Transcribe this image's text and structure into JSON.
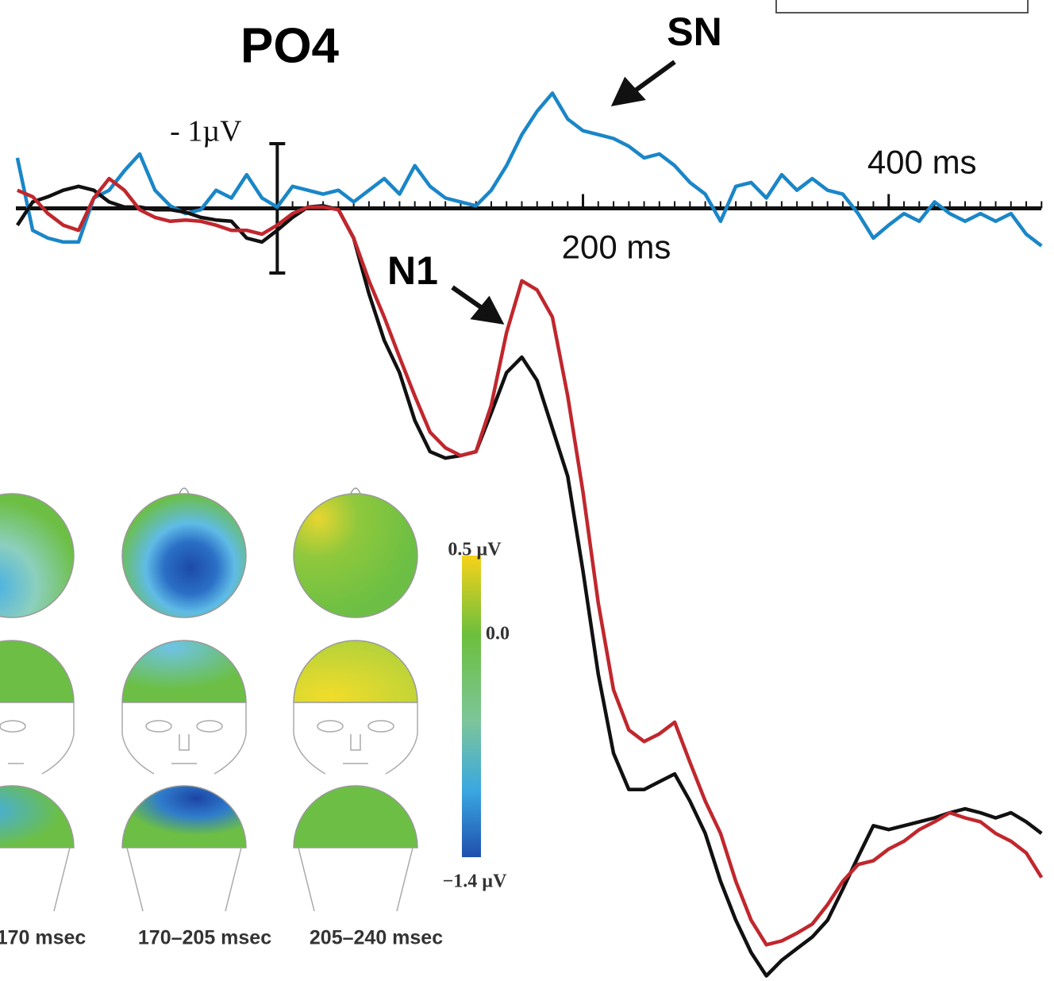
{
  "chart_data": {
    "type": "line",
    "title": "PO4",
    "x": [
      -170,
      -160,
      -150,
      -140,
      -130,
      -120,
      -110,
      -100,
      -90,
      -80,
      -70,
      -60,
      -50,
      -40,
      -30,
      -20,
      -10,
      0,
      10,
      20,
      30,
      40,
      50,
      60,
      70,
      80,
      90,
      100,
      110,
      120,
      130,
      140,
      150,
      160,
      170,
      180,
      190,
      200,
      210,
      220,
      230,
      240,
      250,
      260,
      270,
      280,
      290,
      300,
      310,
      320,
      330,
      340,
      350,
      360,
      370,
      380,
      390,
      400,
      410,
      420,
      430,
      440,
      450,
      460,
      470,
      480,
      490,
      500
    ],
    "series": [
      {
        "color": "#111111",
        "values": [
          0.13,
          -0.05,
          -0.09,
          -0.14,
          -0.17,
          -0.14,
          -0.05,
          -0.01,
          -0.01,
          0.01,
          0.01,
          0.03,
          0.07,
          0.09,
          0.1,
          0.23,
          0.26,
          0.17,
          0.07,
          -0.01,
          -0.02,
          0.01,
          0.23,
          0.66,
          1.02,
          1.27,
          1.64,
          1.88,
          1.93,
          1.91,
          1.88,
          1.58,
          1.27,
          1.15,
          1.33,
          1.7,
          2.07,
          2.8,
          3.6,
          4.21,
          4.49,
          4.49,
          4.43,
          4.37,
          4.58,
          4.83,
          5.2,
          5.5,
          5.75,
          5.93,
          5.81,
          5.72,
          5.63,
          5.5,
          5.26,
          5.01,
          4.77,
          4.8,
          4.77,
          4.74,
          4.71,
          4.67,
          4.64,
          4.67,
          4.71,
          4.67,
          4.74,
          4.83
        ]
      },
      {
        "color": "#c0272d",
        "values": [
          -0.14,
          -0.09,
          0.04,
          0.13,
          0.17,
          -0.08,
          -0.23,
          -0.14,
          0.01,
          0.07,
          0.1,
          0.09,
          0.1,
          0.13,
          0.17,
          0.17,
          0.2,
          0.13,
          0.04,
          -0.01,
          -0.01,
          0.01,
          0.23,
          0.56,
          0.84,
          1.15,
          1.45,
          1.73,
          1.85,
          1.91,
          1.88,
          1.52,
          0.96,
          0.56,
          0.63,
          0.84,
          1.45,
          2.19,
          3.05,
          3.72,
          4.03,
          4.12,
          4.06,
          3.97,
          4.28,
          4.58,
          4.83,
          5.2,
          5.5,
          5.69,
          5.66,
          5.6,
          5.53,
          5.38,
          5.2,
          5.07,
          5.04,
          4.95,
          4.89,
          4.8,
          4.74,
          4.67,
          4.71,
          4.74,
          4.83,
          4.89,
          4.98,
          5.17
        ]
      },
      {
        "color": "#1a86c8",
        "values": [
          -0.39,
          0.17,
          0.23,
          0.26,
          0.26,
          -0.08,
          -0.14,
          -0.29,
          -0.42,
          -0.14,
          -0.02,
          0.04,
          0.01,
          -0.14,
          -0.08,
          -0.26,
          -0.08,
          -0.01,
          -0.17,
          -0.14,
          -0.11,
          -0.14,
          -0.05,
          -0.14,
          -0.23,
          -0.11,
          -0.33,
          -0.17,
          -0.08,
          -0.05,
          -0.02,
          -0.14,
          -0.33,
          -0.57,
          -0.75,
          -0.89,
          -0.69,
          -0.6,
          -0.57,
          -0.54,
          -0.48,
          -0.39,
          -0.42,
          -0.33,
          -0.2,
          -0.11,
          0.1,
          -0.17,
          -0.2,
          -0.08,
          -0.26,
          -0.14,
          -0.23,
          -0.14,
          -0.11,
          0.04,
          0.23,
          0.13,
          0.04,
          0.1,
          -0.05,
          0.04,
          0.1,
          0.04,
          0.1,
          0.04,
          0.2,
          0.29
        ]
      }
    ],
    "xlim": [
      -171,
      504
    ],
    "ylim": [
      -1.61,
      5.97
    ],
    "y_inverted": true,
    "xticks": [
      {
        "value": 200,
        "label": "200 ms"
      },
      {
        "value": 400,
        "label": "400 ms"
      }
    ],
    "minor_xticks": [
      0,
      10,
      20,
      30,
      40,
      50,
      60,
      70,
      80,
      90,
      100,
      110,
      120,
      130,
      140,
      150,
      160,
      170,
      180,
      190,
      200,
      210,
      220,
      230,
      240,
      250,
      260,
      270,
      280,
      290,
      300,
      310,
      320,
      330,
      340,
      350,
      360,
      370,
      380,
      390,
      400,
      410,
      420,
      430,
      440,
      450,
      460,
      470,
      480,
      490,
      500
    ],
    "scale_bar": {
      "label": "- 1µV",
      "x": 0,
      "y": [
        -0.5,
        0.5
      ]
    },
    "annotations": [
      "SN",
      "N1"
    ],
    "topomap": {
      "colorbar_ticks": [
        {
          "value": 0.5,
          "label": "0.5 µV"
        },
        {
          "value": 0,
          "label": "0.0"
        },
        {
          "value": -1.4,
          "label": "−1.4 µV"
        }
      ],
      "colorbar_lim": [
        -1.4,
        0.5
      ],
      "time_windows": [
        "170 msec",
        "170–205 msec",
        "205–240 msec"
      ]
    }
  }
}
